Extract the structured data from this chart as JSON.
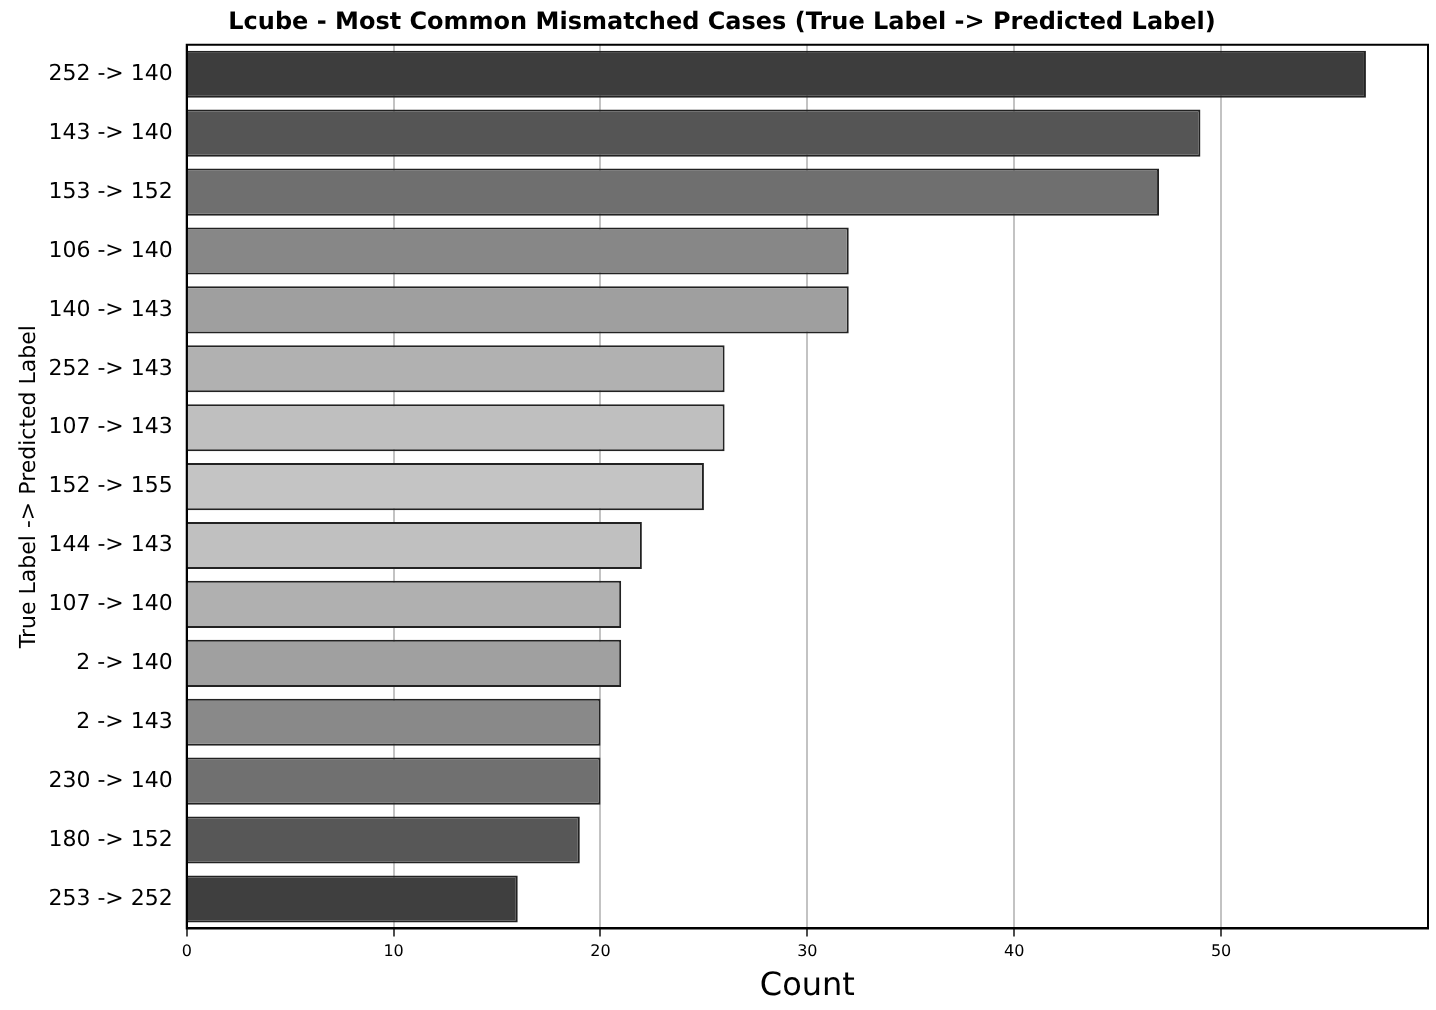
{
  "chart_data": {
    "type": "bar",
    "orientation": "horizontal",
    "title": "Lcube - Most Common Mismatched Cases (True Label -> Predicted Label)",
    "xlabel": "Count",
    "ylabel": "True Label -> Predicted Label",
    "categories": [
      "252 -> 140",
      "143 -> 140",
      "153 -> 152",
      "106 -> 140",
      "140 -> 143",
      "252 -> 143",
      "107 -> 143",
      "152 -> 155",
      "144 -> 143",
      "107 -> 140",
      "2 -> 140",
      "2 -> 143",
      "230 -> 140",
      "180 -> 152",
      "253 -> 252"
    ],
    "values": [
      57,
      49,
      47,
      32,
      32,
      26,
      26,
      25,
      22,
      21,
      21,
      20,
      20,
      19,
      16
    ],
    "colors": [
      "#3d3d3d",
      "#555555",
      "#6f6f6f",
      "#878787",
      "#9f9f9f",
      "#b1b1b1",
      "#bfbfbf",
      "#c4c4c4",
      "#c0c0c0",
      "#b0b0b0",
      "#a0a0a0",
      "#898989",
      "#707070",
      "#575757",
      "#3f3f3f"
    ],
    "xlim": [
      0,
      60
    ],
    "xticks": [
      0,
      10,
      20,
      30,
      40,
      50
    ],
    "grid": "x",
    "legend": false
  }
}
